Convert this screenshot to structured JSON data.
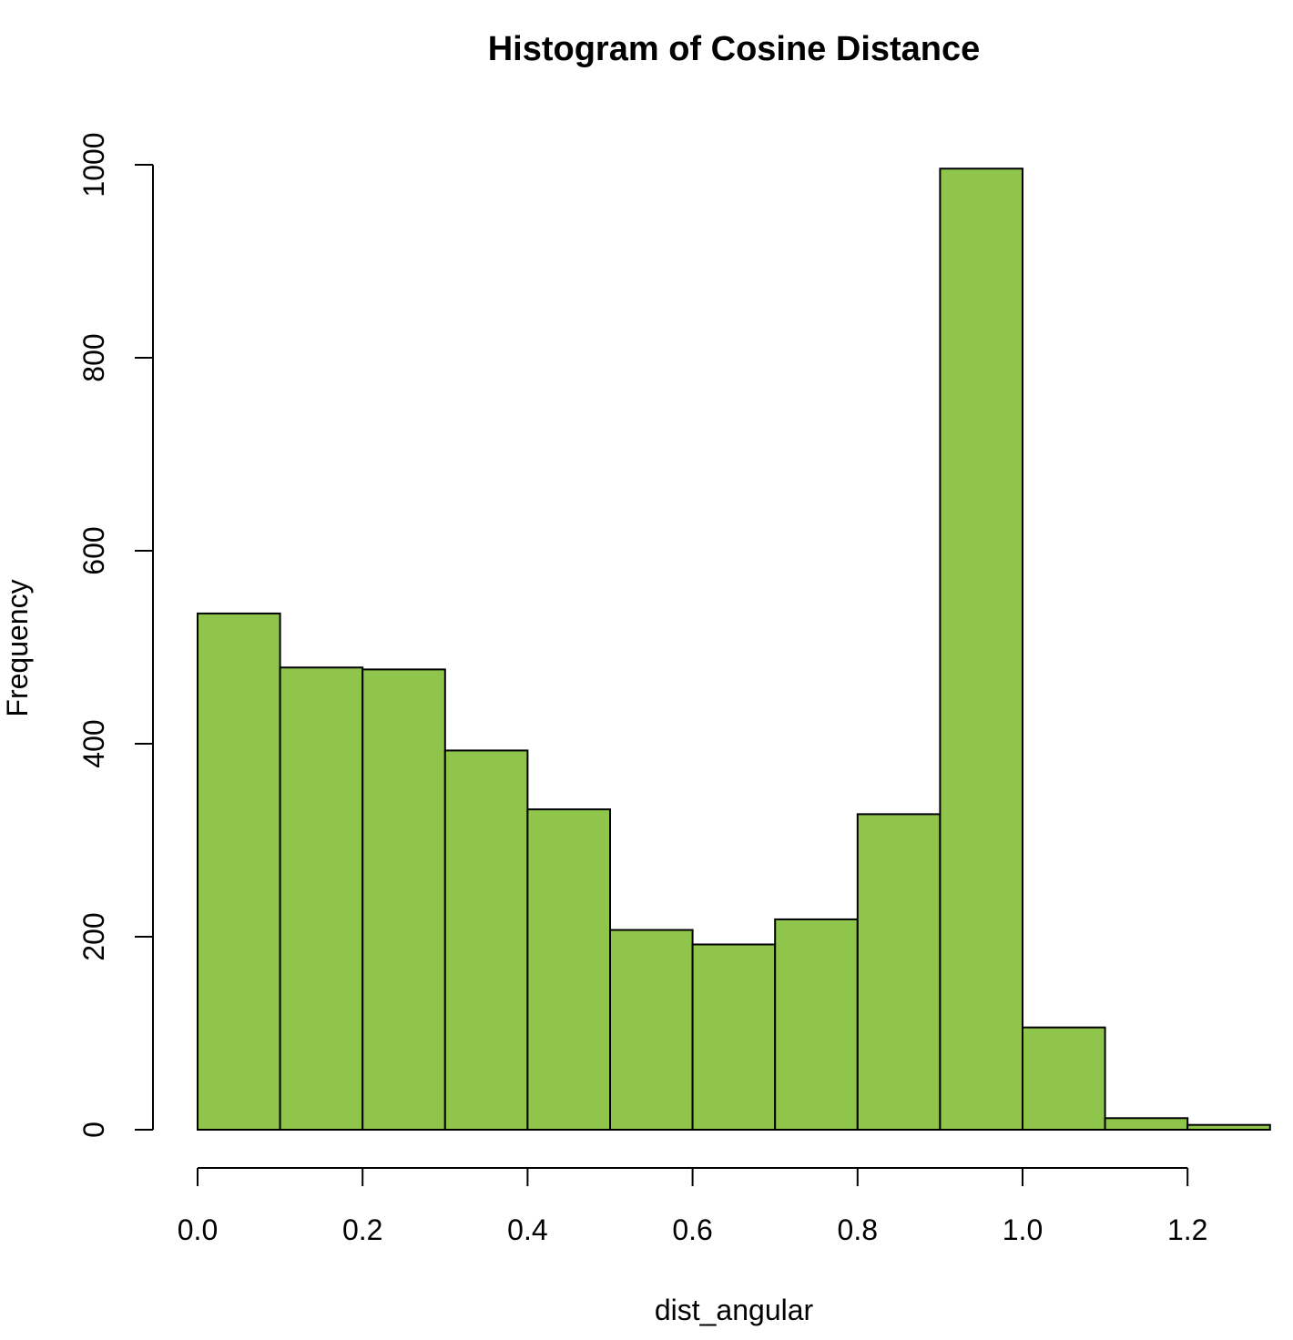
{
  "chart_data": {
    "type": "bar",
    "title": "Histogram of Cosine Distance",
    "xlabel": "dist_angular",
    "ylabel": "Frequency",
    "bin_edges": [
      0.0,
      0.1,
      0.2,
      0.3,
      0.4,
      0.5,
      0.6,
      0.7,
      0.8,
      0.9,
      1.0,
      1.1,
      1.2,
      1.3
    ],
    "values": [
      535,
      479,
      477,
      393,
      332,
      207,
      192,
      218,
      327,
      996,
      106,
      12,
      5
    ],
    "xlim": [
      0.0,
      1.3
    ],
    "ylim": [
      0,
      1000
    ],
    "x_ticks": [
      0.0,
      0.2,
      0.4,
      0.6,
      0.8,
      1.0,
      1.2
    ],
    "x_tick_labels": [
      "0.0",
      "0.2",
      "0.4",
      "0.6",
      "0.8",
      "1.0",
      "1.2"
    ],
    "y_ticks": [
      0,
      200,
      400,
      600,
      800,
      1000
    ],
    "y_tick_labels": [
      "0",
      "200",
      "400",
      "600",
      "800",
      "1000"
    ],
    "bar_color": "#8fc54a",
    "grid": false
  }
}
